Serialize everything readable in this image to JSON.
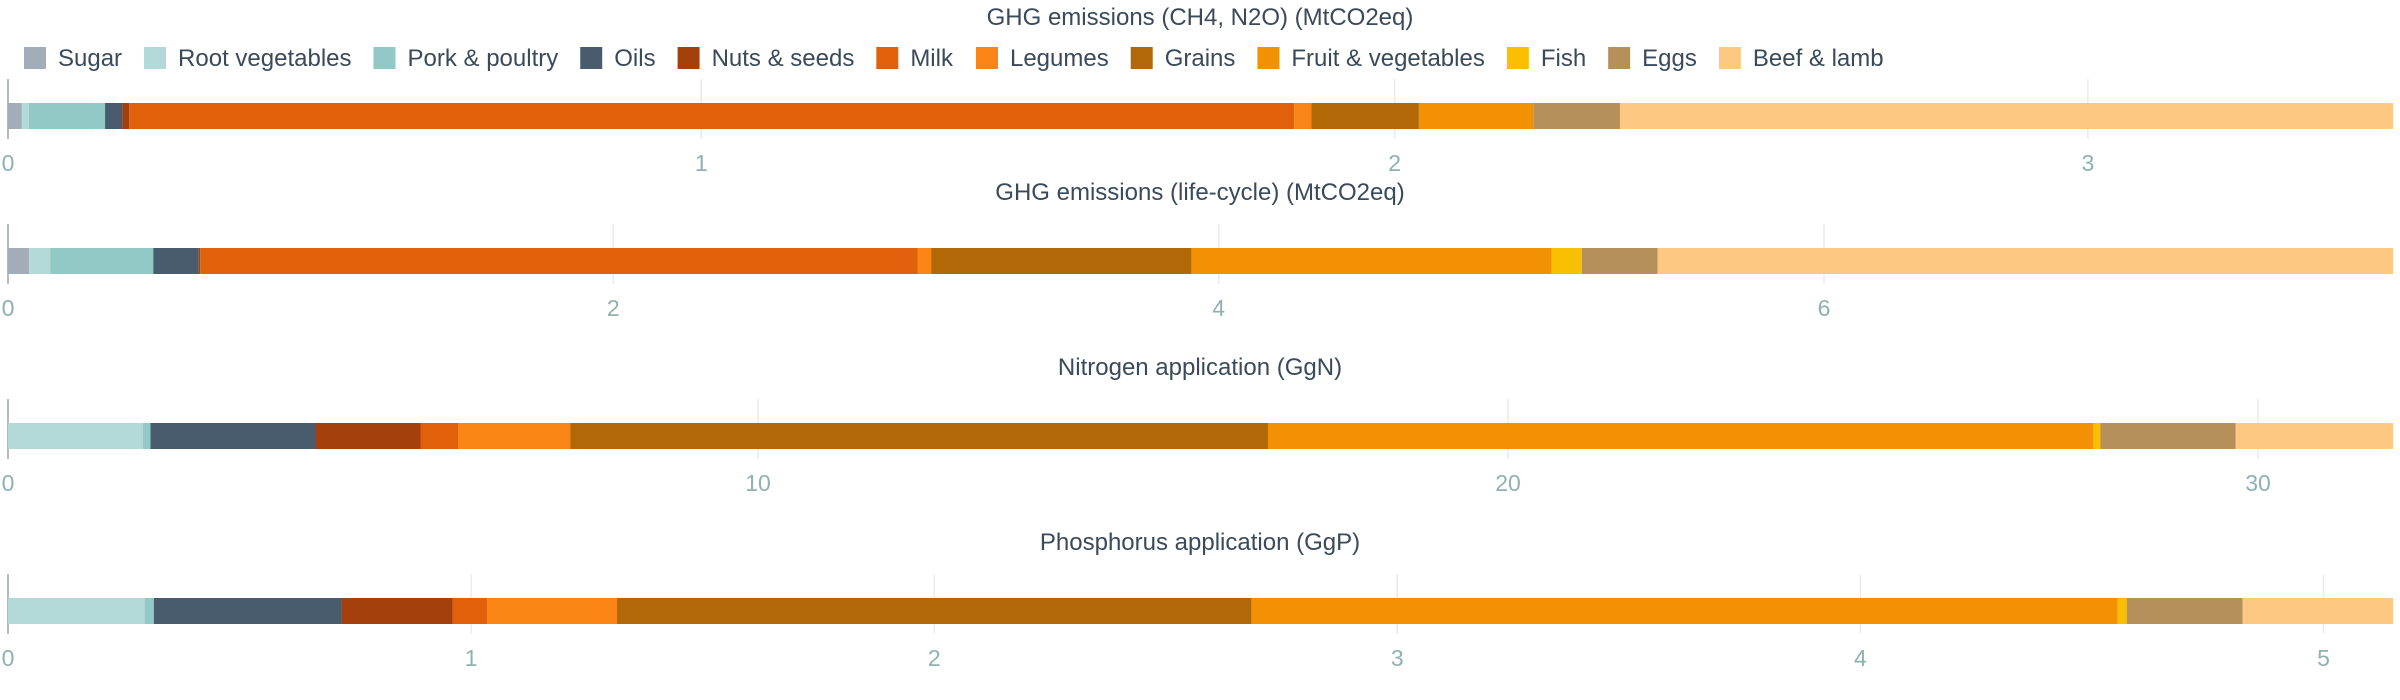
{
  "chart_data": {
    "type": "bar",
    "orientation": "horizontal",
    "stacked": true,
    "grid": true,
    "legend_placement": "top-left",
    "categories": [
      "Sugar",
      "Root vegetables",
      "Pork & poultry",
      "Oils",
      "Nuts & seeds",
      "Milk",
      "Legumes",
      "Grains",
      "Fruit & vegetables",
      "Fish",
      "Eggs",
      "Beef & lamb"
    ],
    "colors": [
      "#a3adb8",
      "#b3dad8",
      "#91c9c6",
      "#485c6e",
      "#a3400c",
      "#e0600b",
      "#fb8416",
      "#b36807",
      "#f39104",
      "#fbbf02",
      "#b6905a",
      "#fdc982"
    ],
    "panels": [
      {
        "title": "GHG emissions (CH4, N2O) (MtCO2eq)",
        "xlim": [
          0,
          3.44
        ],
        "ticks": [
          0,
          1,
          2,
          3
        ],
        "values": [
          0.02,
          0.01,
          0.11,
          0.025,
          0.01,
          1.68,
          0.025,
          0.155,
          0.165,
          0.0,
          0.125,
          1.115
        ]
      },
      {
        "title": "GHG emissions (life-cycle) (MtCO2eq)",
        "xlim": [
          0,
          7.88
        ],
        "ticks": [
          0,
          2,
          4,
          6
        ],
        "values": [
          0.07,
          0.07,
          0.34,
          0.15,
          0.005,
          2.37,
          0.045,
          0.86,
          1.19,
          0.1,
          0.25,
          2.43
        ]
      },
      {
        "title": "Nitrogen application (GgN)",
        "xlim": [
          0,
          31.8
        ],
        "ticks": [
          0,
          10,
          20,
          30
        ],
        "values": [
          0.0,
          1.8,
          0.1,
          2.2,
          1.4,
          0.5,
          1.5,
          9.3,
          11.0,
          0.1,
          1.8,
          2.1
        ]
      },
      {
        "title": "Phosphorus application (GgP)",
        "xlim": [
          0,
          5.15
        ],
        "ticks": [
          0,
          1,
          2,
          3,
          4,
          5
        ],
        "values": [
          0.0,
          0.295,
          0.02,
          0.405,
          0.24,
          0.075,
          0.28,
          1.37,
          1.87,
          0.02,
          0.25,
          0.325
        ]
      }
    ]
  }
}
